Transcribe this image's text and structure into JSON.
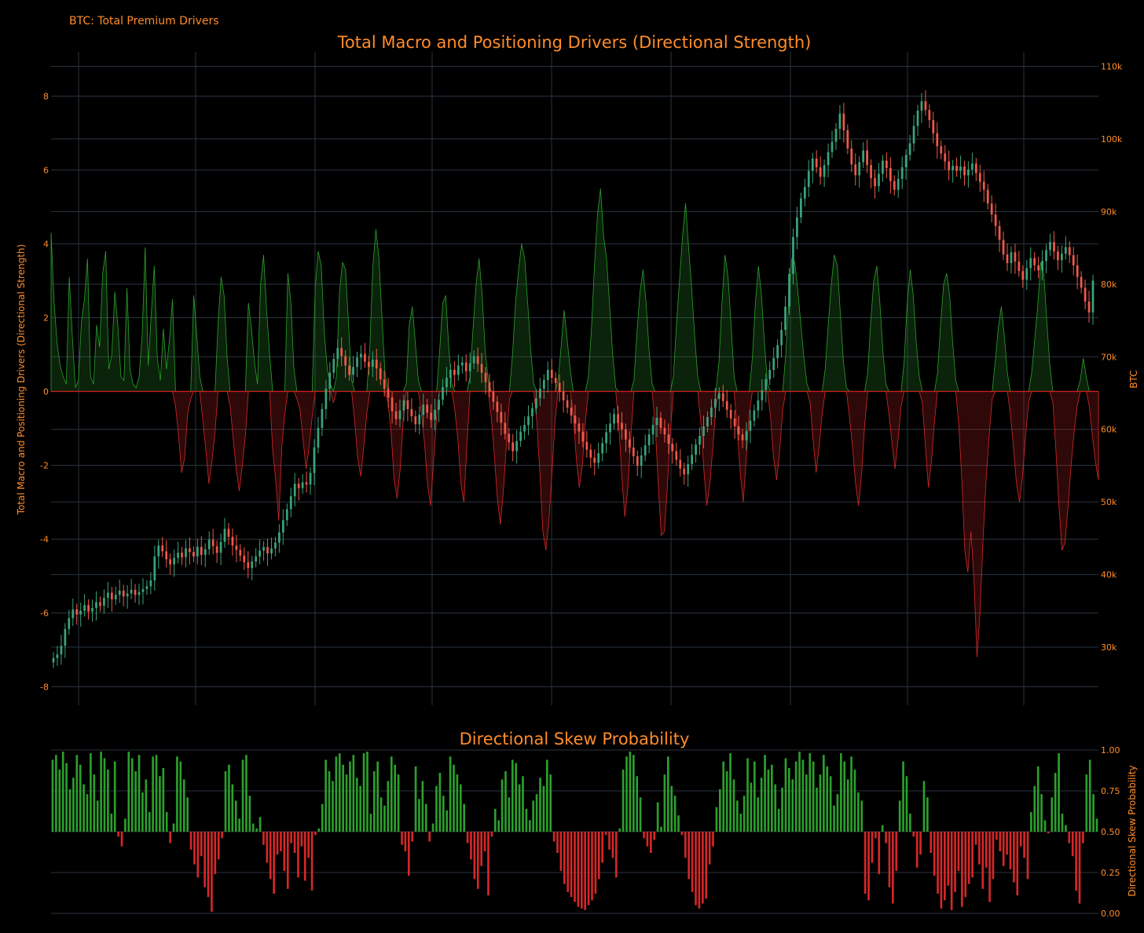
{
  "header": {
    "subtitle": "BTC: Total Premium Drivers"
  },
  "colors": {
    "background": "#000000",
    "text": "#ff8c2a",
    "grid": "#2a3440",
    "positive": "#2ca02c",
    "negative": "#d62728",
    "candle_up": "#3aa37a",
    "candle_down": "#f0584a",
    "zero_line": "#c42020"
  },
  "chart_data": [
    {
      "type": "area",
      "title": "Total Macro and Positioning Drivers (Directional Strength)",
      "ylabel": "Total Macro and Positioning Drivers (Directional Strength)",
      "ylim": [
        -8.5,
        9.2
      ],
      "y_ticks": [
        "8",
        "6",
        "4",
        "2",
        "0",
        "-2",
        "-4",
        "-6",
        "-8"
      ],
      "y_tick_values": [
        8,
        6,
        4,
        2,
        0,
        -2,
        -4,
        -6,
        -8
      ],
      "grid": true,
      "series": [
        {
          "kind": "driver_strength",
          "color_positive": "#2ca02c",
          "color_negative": "#d62728",
          "values": [
            4.3,
            2.4,
            1.3,
            0.7,
            0.4,
            0.2,
            3.1,
            1.5,
            0.1,
            0.3,
            1.9,
            2.5,
            3.6,
            0.4,
            0.2,
            1.8,
            1.2,
            3.2,
            3.8,
            0.6,
            1.0,
            2.7,
            1.8,
            0.4,
            0.3,
            2.8,
            0.6,
            0.2,
            0.1,
            0.4,
            1.5,
            3.9,
            0.7,
            2.1,
            3.4,
            0.9,
            0.3,
            1.7,
            0.6,
            1.4,
            2.5,
            -0.4,
            -1.2,
            -2.2,
            -1.8,
            -0.6,
            -0.2,
            2.6,
            1.5,
            0.4,
            -0.8,
            -1.6,
            -2.5,
            -1.9,
            -1.1,
            1.8,
            3.1,
            2.6,
            0.9,
            -0.4,
            -1.3,
            -2.1,
            -2.7,
            -2.0,
            -1.2,
            2.4,
            1.7,
            0.8,
            0.2,
            2.9,
            3.7,
            2.2,
            1.0,
            -1.6,
            -2.4,
            -3.5,
            -1.5,
            -0.6,
            3.2,
            2.4,
            0.6,
            -0.2,
            -0.5,
            -1.3,
            -2.1,
            -1.5,
            -0.7,
            2.8,
            3.8,
            3.4,
            1.6,
            0.6,
            0.2,
            -0.3,
            0.4,
            2.7,
            3.5,
            3.3,
            1.8,
            0.3,
            -0.8,
            -1.8,
            -2.3,
            -1.5,
            -0.6,
            1.2,
            3.4,
            4.4,
            3.6,
            2.0,
            0.5,
            -0.3,
            -1.1,
            -2.4,
            -2.9,
            -2.1,
            -0.8,
            0.2,
            1.8,
            2.3,
            1.3,
            0.3,
            -0.6,
            -1.4,
            -2.5,
            -3.1,
            -1.9,
            -0.7,
            1.1,
            2.4,
            2.6,
            1.2,
            0.2,
            -0.5,
            -1.3,
            -2.5,
            -3.0,
            -1.4,
            0.4,
            1.7,
            2.9,
            3.6,
            2.6,
            1.1,
            0.3,
            -0.7,
            -1.7,
            -2.9,
            -3.6,
            -2.7,
            -1.4,
            -0.2,
            1.0,
            2.4,
            3.3,
            4.0,
            3.6,
            2.4,
            1.1,
            0.2,
            -0.8,
            -2.2,
            -3.8,
            -4.3,
            -3.5,
            -2.2,
            -0.8,
            0.3,
            1.2,
            2.2,
            1.4,
            0.6,
            -0.6,
            -1.8,
            -2.6,
            -2.0,
            -0.8,
            0.4,
            1.7,
            3.4,
            4.8,
            5.5,
            4.2,
            3.6,
            2.3,
            1.0,
            0.1,
            -0.9,
            -2.3,
            -3.4,
            -2.6,
            -1.2,
            0.3,
            1.6,
            2.7,
            3.3,
            2.4,
            1.1,
            0.2,
            -0.9,
            -2.5,
            -3.9,
            -3.8,
            -2.6,
            -1.1,
            0.4,
            1.8,
            3.0,
            4.2,
            5.1,
            3.9,
            2.8,
            1.5,
            0.4,
            -0.8,
            -2.1,
            -3.1,
            -2.5,
            -1.5,
            -0.4,
            0.8,
            2.4,
            3.7,
            3.1,
            1.8,
            0.4,
            -1.0,
            -2.2,
            -3.0,
            -1.8,
            -0.6,
            0.9,
            2.4,
            3.4,
            2.6,
            1.3,
            0.2,
            -0.7,
            -1.8,
            -2.4,
            -1.6,
            -0.5,
            1.0,
            2.5,
            3.6,
            3.5,
            2.7,
            1.8,
            0.9,
            0.2,
            -0.3,
            -1.3,
            -2.2,
            -1.5,
            -0.6,
            0.6,
            1.8,
            2.9,
            3.7,
            3.4,
            2.1,
            0.8,
            0.1,
            -0.7,
            -1.5,
            -2.5,
            -3.1,
            -2.2,
            -0.9,
            0.5,
            1.9,
            3.0,
            3.4,
            2.4,
            1.1,
            0.2,
            -0.6,
            -1.4,
            -2.1,
            -1.3,
            -0.4,
            0.8,
            2.4,
            3.3,
            2.6,
            1.3,
            0.4,
            -0.3,
            -1.5,
            -2.6,
            -1.9,
            -0.8,
            0.5,
            1.8,
            2.9,
            3.2,
            2.6,
            1.3,
            0.3,
            -0.9,
            -2.4,
            -4.3,
            -4.9,
            -3.8,
            -5.1,
            -7.2,
            -6.0,
            -4.0,
            -2.4,
            -1.2,
            -0.2,
            0.8,
            1.7,
            2.3,
            1.5,
            0.5,
            -0.6,
            -1.5,
            -2.5,
            -3.0,
            -2.3,
            -1.2,
            -0.3,
            0.5,
            1.4,
            2.3,
            3.5,
            3.2,
            1.9,
            0.7,
            -0.3,
            -1.6,
            -3.1,
            -4.3,
            -4.1,
            -3.1,
            -2.0,
            -1.1,
            -0.4,
            0.3,
            0.9,
            0.4,
            -0.4,
            -1.2,
            -1.9,
            -2.4
          ]
        },
        {
          "kind": "candlestick",
          "name": "BTC",
          "color_up": "#3aa37a",
          "color_down": "#f0584a",
          "close": [
            28.5,
            29.0,
            30.2,
            32.5,
            34.0,
            35.2,
            34.5,
            35.0,
            35.8,
            34.9,
            35.4,
            36.2,
            35.7,
            36.8,
            37.5,
            36.6,
            37.2,
            37.8,
            37.0,
            37.4,
            37.9,
            37.2,
            37.6,
            38.0,
            38.4,
            39.2,
            42.5,
            44.0,
            43.2,
            42.1,
            41.4,
            42.3,
            43.0,
            42.4,
            43.6,
            43.1,
            42.5,
            43.8,
            42.7,
            43.5,
            44.8,
            43.9,
            43.0,
            44.5,
            46.3,
            45.2,
            44.0,
            43.4,
            42.6,
            41.7,
            40.9,
            41.8,
            42.5,
            43.3,
            43.8,
            42.9,
            43.6,
            44.4,
            45.8,
            47.5,
            49.0,
            50.8,
            52.5,
            51.9,
            52.7,
            52.4,
            54.0,
            57.5,
            60.2,
            62.8,
            65.6,
            67.8,
            69.7,
            71.2,
            70.1,
            68.8,
            67.5,
            68.6,
            69.9,
            70.4,
            69.3,
            68.6,
            69.6,
            68.4,
            66.9,
            65.6,
            64.4,
            62.5,
            61.4,
            62.6,
            64.0,
            62.8,
            61.8,
            60.7,
            62.0,
            63.4,
            62.3,
            61.3,
            62.7,
            64.1,
            65.8,
            67.1,
            68.2,
            67.5,
            68.8,
            69.2,
            68.0,
            69.1,
            70.1,
            69.0,
            67.8,
            66.5,
            65.2,
            63.8,
            62.4,
            60.9,
            59.4,
            58.2,
            57.0,
            58.4,
            59.7,
            60.6,
            61.8,
            62.9,
            64.3,
            65.6,
            66.8,
            68.2,
            67.1,
            66.4,
            65.2,
            64.0,
            63.0,
            61.9,
            60.8,
            59.7,
            58.3,
            57.2,
            56.1,
            55.4,
            56.7,
            58.1,
            59.6,
            60.8,
            62.1,
            60.9,
            60.0,
            58.6,
            57.5,
            56.3,
            55.0,
            56.4,
            57.8,
            59.3,
            60.6,
            61.6,
            60.2,
            59.3,
            58.0,
            57.0,
            55.8,
            54.6,
            53.8,
            55.2,
            56.5,
            57.9,
            59.1,
            60.4,
            61.7,
            63.0,
            64.2,
            65.0,
            63.9,
            62.7,
            61.5,
            60.4,
            59.3,
            58.5,
            59.8,
            61.2,
            62.6,
            64.0,
            65.4,
            66.9,
            68.2,
            69.8,
            71.6,
            73.7,
            76.9,
            81.4,
            86.5,
            89.2,
            91.8,
            93.4,
            95.6,
            97.3,
            96.1,
            94.8,
            96.4,
            98.2,
            99.6,
            101.4,
            103.5,
            101.2,
            98.7,
            96.5,
            95.0,
            96.8,
            98.4,
            96.4,
            94.6,
            93.5,
            95.2,
            97.0,
            96.0,
            94.2,
            93.0,
            94.5,
            96.1,
            97.8,
            99.4,
            101.8,
            103.9,
            105.2,
            104.0,
            102.6,
            100.8,
            99.0,
            98.0,
            96.9,
            95.7,
            96.3,
            95.6,
            96.2,
            95.0,
            95.8,
            96.6,
            95.3,
            94.1,
            93.0,
            91.1,
            89.6,
            88.0,
            86.1,
            84.1,
            82.9,
            84.4,
            83.1,
            81.8,
            80.6,
            82.2,
            83.6,
            82.6,
            81.9,
            83.2,
            84.7,
            85.8,
            84.5,
            83.3,
            84.2,
            85.1,
            84.0,
            82.6,
            81.0,
            79.5,
            77.6,
            76.1,
            80.5
          ]
        }
      ],
      "y2label": "BTC",
      "y2lim": [
        22,
        112
      ],
      "y2_ticks": [
        "110k",
        "100k",
        "90k",
        "80k",
        "70k",
        "60k",
        "50k",
        "40k",
        "30k"
      ],
      "y2_tick_values": [
        110,
        100,
        90,
        80,
        70,
        60,
        50,
        40,
        30
      ]
    },
    {
      "type": "bar",
      "title": "Directional Skew Probability",
      "ylabel": "Directional Skew Probability",
      "ylim": [
        0,
        1
      ],
      "y_ticks": [
        "1.00",
        "0.75",
        "0.50",
        "0.25",
        "0.00"
      ],
      "y_tick_values": [
        1.0,
        0.75,
        0.5,
        0.25,
        0.0
      ],
      "baseline": 0.5,
      "grid": true,
      "colors": {
        "above": "#2ca02c",
        "below": "#d62728"
      },
      "values": [
        0.94,
        0.97,
        0.88,
        0.99,
        0.92,
        0.76,
        0.83,
        0.97,
        0.91,
        0.79,
        0.73,
        0.98,
        0.85,
        0.69,
        0.99,
        0.95,
        0.88,
        0.61,
        0.93,
        0.47,
        0.41,
        0.58,
        0.99,
        0.95,
        0.87,
        0.97,
        0.74,
        0.82,
        0.62,
        0.96,
        0.97,
        0.84,
        0.89,
        0.62,
        0.43,
        0.55,
        0.96,
        0.93,
        0.82,
        0.71,
        0.39,
        0.3,
        0.22,
        0.35,
        0.16,
        0.1,
        0.01,
        0.24,
        0.33,
        0.46,
        0.87,
        0.91,
        0.79,
        0.69,
        0.58,
        0.94,
        0.97,
        0.72,
        0.55,
        0.52,
        0.59,
        0.42,
        0.31,
        0.21,
        0.12,
        0.36,
        0.38,
        0.26,
        0.15,
        0.43,
        0.37,
        0.22,
        0.41,
        0.2,
        0.34,
        0.14,
        0.48,
        0.52,
        0.67,
        0.94,
        0.87,
        0.81,
        0.96,
        0.98,
        0.91,
        0.85,
        0.93,
        0.97,
        0.83,
        0.78,
        0.98,
        0.99,
        0.61,
        0.87,
        0.93,
        0.71,
        0.66,
        0.81,
        0.96,
        0.91,
        0.85,
        0.42,
        0.38,
        0.23,
        0.44,
        0.9,
        0.7,
        0.81,
        0.67,
        0.44,
        0.55,
        0.78,
        0.86,
        0.72,
        0.63,
        0.96,
        0.91,
        0.85,
        0.79,
        0.67,
        0.43,
        0.33,
        0.21,
        0.15,
        0.29,
        0.38,
        0.11,
        0.47,
        0.64,
        0.57,
        0.82,
        0.87,
        0.71,
        0.94,
        0.92,
        0.79,
        0.84,
        0.64,
        0.57,
        0.69,
        0.73,
        0.83,
        0.78,
        0.94,
        0.85,
        0.44,
        0.37,
        0.26,
        0.18,
        0.13,
        0.1,
        0.07,
        0.04,
        0.03,
        0.02,
        0.05,
        0.08,
        0.12,
        0.21,
        0.31,
        0.48,
        0.39,
        0.34,
        0.22,
        0.52,
        0.88,
        0.96,
        0.99,
        0.97,
        0.84,
        0.71,
        0.46,
        0.41,
        0.37,
        0.45,
        0.68,
        0.53,
        0.85,
        0.96,
        0.78,
        0.72,
        0.6,
        0.48,
        0.34,
        0.21,
        0.13,
        0.05,
        0.03,
        0.06,
        0.09,
        0.3,
        0.41,
        0.65,
        0.76,
        0.93,
        0.87,
        0.98,
        0.82,
        0.69,
        0.61,
        0.72,
        0.95,
        0.8,
        0.93,
        0.71,
        0.83,
        0.97,
        0.88,
        0.91,
        0.79,
        0.64,
        0.77,
        0.95,
        0.89,
        0.82,
        0.93,
        0.99,
        0.94,
        0.85,
        0.98,
        0.93,
        0.77,
        0.85,
        0.97,
        0.9,
        0.84,
        0.66,
        0.73,
        0.98,
        0.93,
        0.82,
        0.96,
        0.88,
        0.74,
        0.69,
        0.12,
        0.08,
        0.31,
        0.46,
        0.24,
        0.54,
        0.43,
        0.16,
        0.06,
        0.26,
        0.69,
        0.93,
        0.84,
        0.61,
        0.47,
        0.28,
        0.36,
        0.81,
        0.71,
        0.37,
        0.23,
        0.12,
        0.03,
        0.08,
        0.17,
        0.02,
        0.13,
        0.26,
        0.04,
        0.1,
        0.18,
        0.22,
        0.42,
        0.3,
        0.15,
        0.28,
        0.07,
        0.21,
        0.45,
        0.38,
        0.29,
        0.36,
        0.27,
        0.19,
        0.11,
        0.41,
        0.34,
        0.21,
        0.62,
        0.78,
        0.9,
        0.73,
        0.57,
        0.49,
        0.71,
        0.86,
        0.98,
        0.61,
        0.54,
        0.43,
        0.35,
        0.14,
        0.06,
        0.43,
        0.85,
        0.94,
        0.73,
        0.58
      ]
    }
  ]
}
